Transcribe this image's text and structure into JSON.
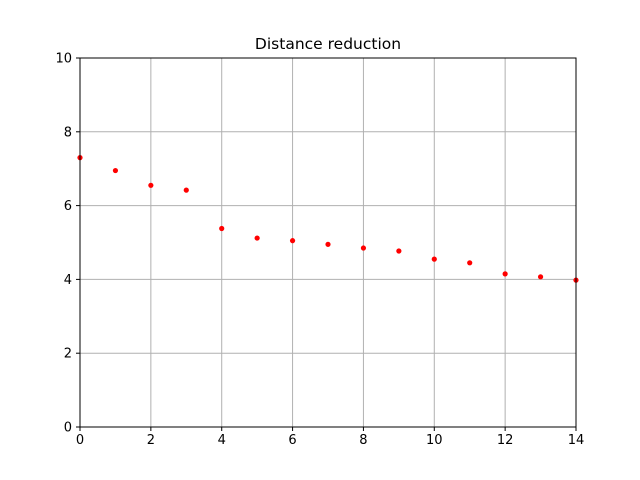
{
  "chart_data": {
    "type": "scatter",
    "title": "Distance reduction",
    "xlabel": "",
    "ylabel": "",
    "xlim": [
      0,
      14
    ],
    "ylim": [
      0,
      10
    ],
    "x_ticks": [
      0,
      2,
      4,
      6,
      8,
      10,
      12,
      14
    ],
    "y_ticks": [
      0,
      2,
      4,
      6,
      8,
      10
    ],
    "grid": true,
    "marker_color": "#ff0000",
    "series": [
      {
        "x": [
          0,
          1,
          2,
          3,
          4,
          5,
          6,
          7,
          8,
          9,
          10,
          11,
          12,
          13,
          14
        ],
        "y": [
          7.3,
          6.95,
          6.55,
          6.42,
          5.38,
          5.12,
          5.05,
          4.95,
          4.85,
          4.77,
          4.55,
          4.45,
          4.15,
          4.07,
          3.98
        ]
      }
    ]
  }
}
